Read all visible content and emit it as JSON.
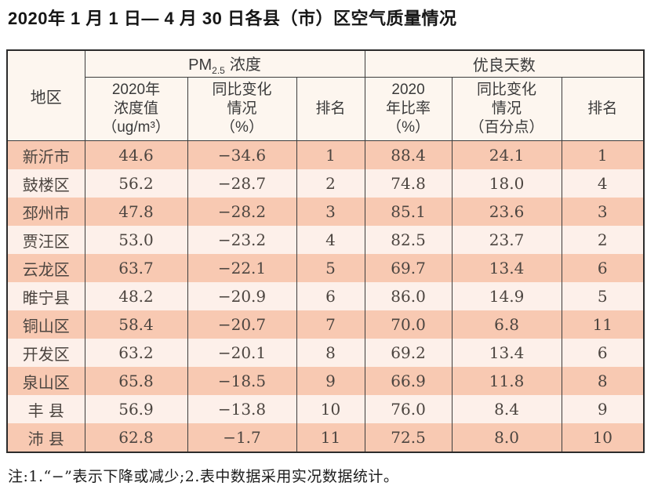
{
  "title": "2020年 1 月 1 日— 4 月 30 日各县（市）区空气质量情况",
  "note": "注:1.“−”表示下降或减少;2.表中数据采用实况数据统计。",
  "colors": {
    "row_salmon": "#f8c9b2",
    "row_light": "#fdf0ea",
    "header_bg": "#fdf6ef",
    "border_dark": "#2c2c2c",
    "grid_line": "#3d3d3d"
  },
  "table": {
    "corner": "地区",
    "group1": {
      "pm": "PM",
      "sub": "2.5",
      "rest": "浓度"
    },
    "group2": "优良天数",
    "cols": {
      "pm_value": [
        "2020年",
        "浓度值",
        "（ug/m³）"
      ],
      "pm_change": [
        "同比变化",
        "情况",
        "（%）"
      ],
      "pm_rank": "排名",
      "rate": [
        "2020",
        "年比率",
        "（%）"
      ],
      "rate_change": [
        "同比变化",
        "情况",
        "（百分点）"
      ],
      "rate_rank": "排名"
    },
    "rows": [
      {
        "region": "新沂市",
        "pm_value": "44.6",
        "pm_change": "−34.6",
        "pm_rank": "1",
        "rate": "88.4",
        "rate_change": "24.1",
        "rate_rank": "1"
      },
      {
        "region": "鼓楼区",
        "pm_value": "56.2",
        "pm_change": "−28.7",
        "pm_rank": "2",
        "rate": "74.8",
        "rate_change": "18.0",
        "rate_rank": "4"
      },
      {
        "region": "邳州市",
        "pm_value": "47.8",
        "pm_change": "−28.2",
        "pm_rank": "3",
        "rate": "85.1",
        "rate_change": "23.6",
        "rate_rank": "3"
      },
      {
        "region": "贾汪区",
        "pm_value": "53.0",
        "pm_change": "−23.2",
        "pm_rank": "4",
        "rate": "82.5",
        "rate_change": "23.7",
        "rate_rank": "2"
      },
      {
        "region": "云龙区",
        "pm_value": "63.7",
        "pm_change": "−22.1",
        "pm_rank": "5",
        "rate": "69.7",
        "rate_change": "13.4",
        "rate_rank": "6"
      },
      {
        "region": "睢宁县",
        "pm_value": "48.2",
        "pm_change": "−20.9",
        "pm_rank": "6",
        "rate": "86.0",
        "rate_change": "14.9",
        "rate_rank": "5"
      },
      {
        "region": "铜山区",
        "pm_value": "58.4",
        "pm_change": "−20.7",
        "pm_rank": "7",
        "rate": "70.0",
        "rate_change": "6.8",
        "rate_rank": "11"
      },
      {
        "region": "开发区",
        "pm_value": "63.2",
        "pm_change": "−20.1",
        "pm_rank": "8",
        "rate": "69.2",
        "rate_change": "13.4",
        "rate_rank": "6"
      },
      {
        "region": "泉山区",
        "pm_value": "65.8",
        "pm_change": "−18.5",
        "pm_rank": "9",
        "rate": "66.9",
        "rate_change": "11.8",
        "rate_rank": "8"
      },
      {
        "region": "丰 县",
        "pm_value": "56.9",
        "pm_change": "−13.8",
        "pm_rank": "10",
        "rate": "76.0",
        "rate_change": "8.4",
        "rate_rank": "9"
      },
      {
        "region": "沛 县",
        "pm_value": "62.8",
        "pm_change": "−1.7",
        "pm_rank": "11",
        "rate": "72.5",
        "rate_change": "8.0",
        "rate_rank": "10"
      }
    ]
  }
}
